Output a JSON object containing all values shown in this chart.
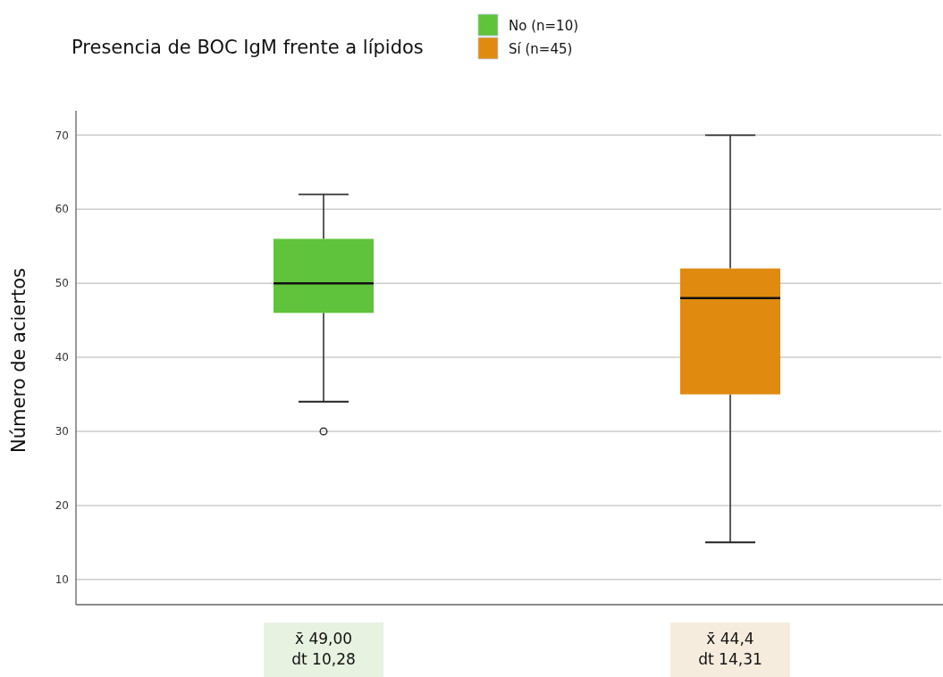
{
  "chart_data": {
    "type": "box",
    "title": "Presencia de BOC IgM frente a lípidos",
    "ylabel": "Número de aciertos",
    "categories": [
      null,
      null
    ],
    "series": [
      {
        "name": "No (n=10)",
        "color": "#5fc33b",
        "boxes": [
          {
            "low": 34,
            "q1": 46,
            "median": 50,
            "q3": 56,
            "high": 62,
            "outliers": [
              30
            ]
          },
          null
        ]
      },
      {
        "name": "Sí (n=45)",
        "color": "#e08a10",
        "boxes": [
          null,
          {
            "low": 15,
            "q1": 35,
            "median": 48,
            "q3": 52,
            "high": 70
          }
        ]
      }
    ],
    "ylim": [
      6.6,
      73.3
    ],
    "yticks": [
      10,
      20,
      30,
      40,
      50,
      60,
      70
    ],
    "grid": "y",
    "legend": "top",
    "annotations": [
      "x̄ 49,00\ndt 10,28",
      "x̄ 44,4\ndt 14,31"
    ]
  }
}
